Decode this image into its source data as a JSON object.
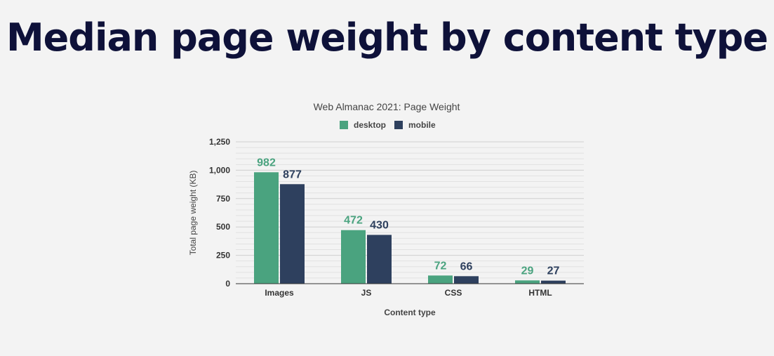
{
  "page": {
    "heading": "Median page weight by content type"
  },
  "chart_data": {
    "type": "bar",
    "title": "Web Almanac 2021: Page Weight",
    "xlabel": "Content type",
    "ylabel": "Total page weight (KB)",
    "categories": [
      "Images",
      "JS",
      "CSS",
      "HTML"
    ],
    "series": [
      {
        "name": "desktop",
        "color": "#4aa37f",
        "values": [
          982,
          472,
          72,
          29
        ]
      },
      {
        "name": "mobile",
        "color": "#2e405e",
        "values": [
          877,
          430,
          66,
          27
        ]
      }
    ],
    "ylim": [
      0,
      1250
    ],
    "yticks": [
      {
        "value": 0,
        "label": "0"
      },
      {
        "value": 250,
        "label": "250"
      },
      {
        "value": 500,
        "label": "500"
      },
      {
        "value": 750,
        "label": "750"
      },
      {
        "value": 1000,
        "label": "1,000"
      },
      {
        "value": 1250,
        "label": "1,250"
      }
    ],
    "grid": true,
    "legend_position": "top"
  }
}
